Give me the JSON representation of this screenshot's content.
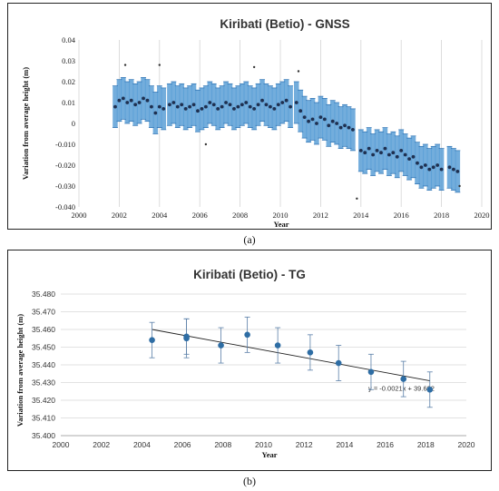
{
  "chart_data": [
    {
      "id": "gnss",
      "type": "scatter",
      "title": "Kiribati (Betio) - GNSS",
      "xlabel": "Year",
      "ylabel": "Variation from average height (m)",
      "xlim": [
        2000,
        2020
      ],
      "ylim": [
        -0.04,
        0.04
      ],
      "xticks": [
        "2000",
        "2002",
        "2004",
        "2006",
        "2008",
        "2010",
        "2012",
        "2014",
        "2016",
        "2018",
        "2020"
      ],
      "yticks": [
        "0.04",
        "0.03",
        "0.02",
        "0.01",
        "0",
        "-0.010",
        "-0.020",
        "-0.030",
        "-0.040"
      ],
      "grid": "vertical",
      "series": [
        {
          "x": [
            2001.8,
            2002.0,
            2002.2,
            2002.4,
            2002.6,
            2002.8,
            2003.0,
            2003.2,
            2003.4,
            2003.6,
            2003.8,
            2004.0,
            2004.2,
            2004.5,
            2004.7,
            2004.9,
            2005.1,
            2005.3,
            2005.5,
            2005.7,
            2005.9,
            2006.1,
            2006.3,
            2006.5,
            2006.7,
            2006.9,
            2007.1,
            2007.3,
            2007.5,
            2007.7,
            2007.9,
            2008.1,
            2008.3,
            2008.5,
            2008.7,
            2008.9,
            2009.1,
            2009.3,
            2009.5,
            2009.7,
            2009.9,
            2010.1,
            2010.3,
            2010.5,
            2010.8,
            2011.0,
            2011.2,
            2011.4,
            2011.6,
            2011.8,
            2012.0,
            2012.2,
            2012.4,
            2012.6,
            2012.8,
            2013.0,
            2013.2,
            2013.4,
            2013.6,
            2014.0,
            2014.2,
            2014.4,
            2014.6,
            2014.8,
            2015.0,
            2015.2,
            2015.4,
            2015.6,
            2015.8,
            2016.0,
            2016.2,
            2016.4,
            2016.6,
            2016.8,
            2017.0,
            2017.2,
            2017.4,
            2017.6,
            2017.8,
            2018.0,
            2018.4,
            2018.6,
            2018.8
          ],
          "y": [
            0.008,
            0.011,
            0.012,
            0.01,
            0.011,
            0.009,
            0.01,
            0.012,
            0.011,
            0.008,
            0.005,
            0.008,
            0.007,
            0.009,
            0.01,
            0.008,
            0.009,
            0.007,
            0.008,
            0.009,
            0.006,
            0.007,
            0.008,
            0.01,
            0.009,
            0.007,
            0.008,
            0.01,
            0.009,
            0.007,
            0.008,
            0.009,
            0.01,
            0.008,
            0.007,
            0.009,
            0.011,
            0.009,
            0.008,
            0.007,
            0.009,
            0.01,
            0.011,
            0.008,
            0.01,
            0.006,
            0.003,
            0.001,
            0.002,
            0.0,
            0.003,
            0.002,
            -0.001,
            0.001,
            0.0,
            -0.002,
            -0.001,
            -0.002,
            -0.003,
            -0.013,
            -0.014,
            -0.012,
            -0.015,
            -0.013,
            -0.014,
            -0.012,
            -0.015,
            -0.014,
            -0.016,
            -0.013,
            -0.015,
            -0.017,
            -0.016,
            -0.019,
            -0.021,
            -0.02,
            -0.022,
            -0.021,
            -0.02,
            -0.022,
            -0.021,
            -0.022,
            -0.023
          ],
          "error": 0.01
        }
      ],
      "outliers": {
        "x": [
          2002.3,
          2004.0,
          2006.3,
          2008.7,
          2010.9,
          2013.8,
          2018.9
        ],
        "y": [
          0.028,
          0.028,
          -0.01,
          0.027,
          0.025,
          -0.036,
          -0.03
        ]
      }
    },
    {
      "id": "tg",
      "type": "scatter",
      "title": "Kiribati (Betio) - TG",
      "xlabel": "Year",
      "ylabel": "Variation from average height (m)",
      "xlim": [
        2000,
        2020
      ],
      "ylim": [
        35.4,
        35.48
      ],
      "xticks": [
        "2000",
        "2002",
        "2004",
        "2006",
        "2008",
        "2010",
        "2012",
        "2014",
        "2016",
        "2018",
        "2020"
      ],
      "yticks": [
        "35.480",
        "35.470",
        "35.460",
        "35.450",
        "35.440",
        "35.430",
        "35.420",
        "35.410",
        "35.400"
      ],
      "grid": "horizontal",
      "series": [
        {
          "x": [
            2004.5,
            2006.2,
            2006.2,
            2007.9,
            2009.2,
            2010.7,
            2012.3,
            2013.7,
            2015.3,
            2016.9,
            2018.2
          ],
          "y": [
            35.454,
            35.456,
            35.455,
            35.451,
            35.457,
            35.451,
            35.447,
            35.441,
            35.436,
            35.432,
            35.426
          ],
          "error": [
            0.01,
            0.01,
            0.011,
            0.01,
            0.01,
            0.01,
            0.01,
            0.01,
            0.01,
            0.01,
            0.01
          ]
        }
      ],
      "trendline": {
        "x": [
          2004.5,
          2018.2
        ],
        "y": [
          35.46,
          35.431
        ],
        "label": "y = -0.0021x + 39.692"
      }
    }
  ],
  "captions": {
    "a": "(a)",
    "b": "(b)"
  },
  "colors": {
    "error_band": "#5b9fd6",
    "points": "#1f3050",
    "markers": "#2e6da4",
    "trend": "#222222"
  }
}
